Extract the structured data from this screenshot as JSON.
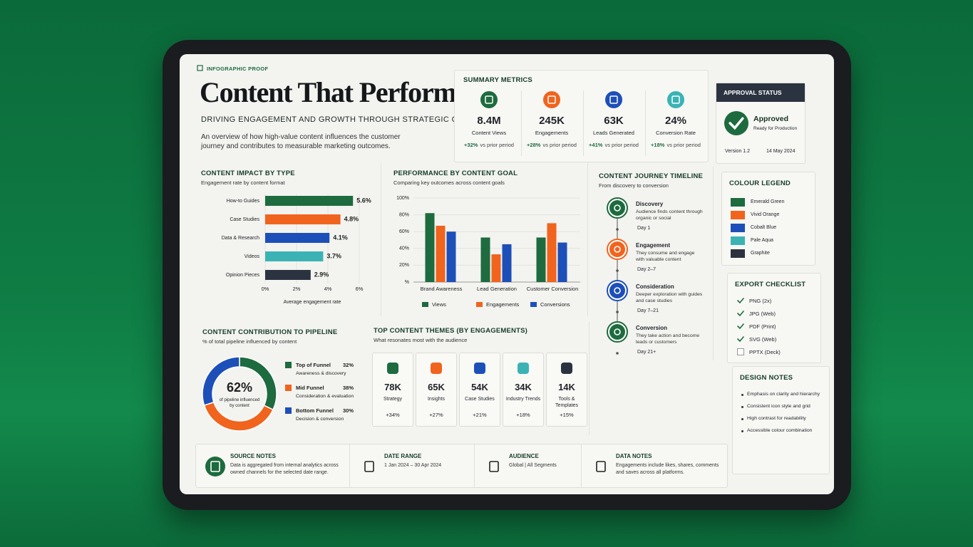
{
  "header": {
    "tag": "INFOGRAPHIC PROOF",
    "title": "Content That Performs",
    "subtitle": "DRIVING ENGAGEMENT AND GROWTH THROUGH STRATEGIC CONTENT",
    "description": "An overview of how high-value content influences the customer journey and contributes to measurable marketing outcomes."
  },
  "summary": {
    "title": "SUMMARY METRICS",
    "metrics": [
      {
        "value": "8.4M",
        "label": "Content Views",
        "change": "+32%",
        "note": "vs prior period",
        "color": "#1d6b3e"
      },
      {
        "value": "245K",
        "label": "Engagements",
        "change": "+28%",
        "note": "vs prior period",
        "color": "#f0641e"
      },
      {
        "value": "63K",
        "label": "Leads Generated",
        "change": "+41%",
        "note": "vs prior period",
        "color": "#1d4fb8"
      },
      {
        "value": "24%",
        "label": "Conversion Rate",
        "change": "+18%",
        "note": "vs prior period",
        "color": "#3bb3b5"
      }
    ]
  },
  "approval": {
    "title": "APPROVAL STATUS",
    "status": "Approved",
    "detail": "Ready for Production",
    "version": "Version 1.2",
    "date": "14 May 2024"
  },
  "colour_legend": {
    "title": "COLOUR LEGEND",
    "items": [
      {
        "name": "Emerald Green",
        "color": "#1d6b3e"
      },
      {
        "name": "Vivid Orange",
        "color": "#f0641e"
      },
      {
        "name": "Cobalt Blue",
        "color": "#1d4fb8"
      },
      {
        "name": "Pale Aqua",
        "color": "#3bb3b5"
      },
      {
        "name": "Graphite",
        "color": "#2b3340"
      }
    ]
  },
  "export_checklist": {
    "title": "EXPORT CHECKLIST",
    "items": [
      {
        "label": "PNG (2x)",
        "checked": true
      },
      {
        "label": "JPG (Web)",
        "checked": true
      },
      {
        "label": "PDF (Print)",
        "checked": true
      },
      {
        "label": "SVG (Web)",
        "checked": true
      },
      {
        "label": "PPTX (Deck)",
        "checked": false
      }
    ]
  },
  "design_notes": {
    "title": "DESIGN NOTES",
    "items": [
      "Emphasis on clarity and hierarchy",
      "Consistent icon style and grid",
      "High contrast for readability",
      "Accessible colour combination"
    ]
  },
  "chart_data": [
    {
      "type": "hbar",
      "title": "CONTENT IMPACT BY TYPE",
      "subtitle": "Engagement rate by content format",
      "categories": [
        "How-to Guides",
        "Case Studies",
        "Data & Research",
        "Videos",
        "Opinion Pieces"
      ],
      "values": [
        5.6,
        4.8,
        4.1,
        3.7,
        2.9
      ],
      "value_labels": [
        "5.6%",
        "4.8%",
        "4.1%",
        "3.7%",
        "2.9%"
      ],
      "colors": [
        "#1d6b3e",
        "#f0641e",
        "#1d4fb8",
        "#3bb3b5",
        "#2b3340"
      ],
      "xlim": [
        0,
        6
      ],
      "xticks": [
        {
          "value": 0,
          "label": "0%"
        },
        {
          "value": 2,
          "label": "2%"
        },
        {
          "value": 4,
          "label": "4%"
        },
        {
          "value": 6,
          "label": "6%"
        }
      ],
      "xlabel": "Average engagement rate",
      "grid": true
    },
    {
      "type": "bar",
      "title": "PERFORMANCE BY CONTENT GOAL",
      "subtitle": "Comparing key outcomes across content goals",
      "categories": [
        "Brand Awareness",
        "Lead Generation",
        "Customer Conversion"
      ],
      "series": [
        {
          "name": "Views",
          "color": "#1d6b3e",
          "values": [
            82,
            53,
            53
          ]
        },
        {
          "name": "Engagements",
          "color": "#f0641e",
          "values": [
            67,
            33,
            70
          ]
        },
        {
          "name": "Conversions",
          "color": "#1d4fb8",
          "values": [
            60,
            45,
            47
          ]
        }
      ],
      "ylim": [
        0,
        100
      ],
      "yticks": [
        {
          "value": 0,
          "label": "%"
        },
        {
          "value": 20,
          "label": "20%"
        },
        {
          "value": 40,
          "label": "40%"
        },
        {
          "value": 60,
          "label": "60%"
        },
        {
          "value": 80,
          "label": "80%"
        },
        {
          "value": 100,
          "label": "100%"
        }
      ],
      "grid": true
    },
    {
      "type": "donut",
      "title": "CONTENT CONTRIBUTION TO PIPELINE",
      "subtitle": "% of total pipeline influenced by content",
      "categories": [
        "Top of Funnel",
        "Mid Funnel",
        "Bottom Funnel"
      ],
      "descriptions": [
        "Awareness & discovery",
        "Consideration & evaluation",
        "Decision & conversion"
      ],
      "values": [
        32,
        38,
        30
      ],
      "value_labels": [
        "32%",
        "38%",
        "30%"
      ],
      "colors": [
        "#1d6b3e",
        "#f0641e",
        "#1d4fb8"
      ],
      "center_value": "62%",
      "center_text": "of pipeline influenced by content"
    }
  ],
  "timeline": {
    "title": "CONTENT JOURNEY TIMELINE",
    "subtitle": "From discovery to conversion",
    "steps": [
      {
        "title": "Discovery",
        "text": "Audience finds content through organic or social",
        "day": "Day 1",
        "color": "#1d6b3e"
      },
      {
        "title": "Engagement",
        "text": "They consume and engage with valuable content",
        "day": "Day 2–7",
        "color": "#f0641e"
      },
      {
        "title": "Consideration",
        "text": "Deeper exploration with guides and case studies",
        "day": "Day 7–21",
        "color": "#1d4fb8"
      },
      {
        "title": "Conversion",
        "text": "They take action and become leads or customers",
        "day": "Day 21+",
        "color": "#1d6b3e"
      }
    ]
  },
  "themes": {
    "title": "TOP CONTENT THEMES (BY ENGAGEMENTS)",
    "subtitle": "What resonates most with the audience",
    "items": [
      {
        "value": "78K",
        "label": "Strategy",
        "change": "+34%",
        "color": "#1d6b3e"
      },
      {
        "value": "65K",
        "label": "Insights",
        "change": "+27%",
        "color": "#f0641e"
      },
      {
        "value": "54K",
        "label": "Case Studies",
        "change": "+21%",
        "color": "#1d4fb8"
      },
      {
        "value": "34K",
        "label": "Industry Trends",
        "change": "+18%",
        "color": "#3bb3b5"
      },
      {
        "value": "14K",
        "label": "Tools & Templates",
        "change": "+15%",
        "color": "#2b3340"
      }
    ]
  },
  "footer": [
    {
      "title": "SOURCE NOTES",
      "text": "Data is aggregated from internal analytics across owned channels for the selected date range."
    },
    {
      "title": "DATE RANGE",
      "text": "1 Jan 2024 – 30 Apr 2024"
    },
    {
      "title": "AUDIENCE",
      "text": "Global | All Segments"
    },
    {
      "title": "DATA NOTES",
      "text": "Engagements include likes, shares, comments and saves across all platforms."
    }
  ]
}
